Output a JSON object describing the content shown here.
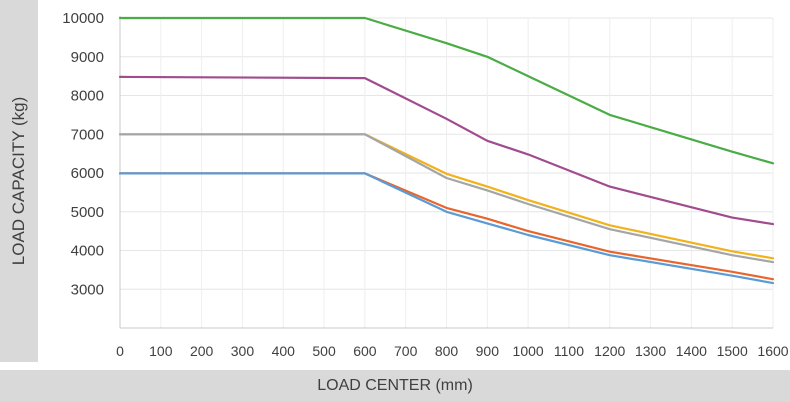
{
  "chart_data": {
    "type": "line",
    "xlabel": "LOAD CENTER (mm)",
    "ylabel": "LOAD CAPACITY (kg)",
    "x": [
      0,
      600,
      800,
      900,
      1000,
      1200,
      1500,
      1600
    ],
    "xticks": [
      0,
      100,
      200,
      300,
      400,
      500,
      600,
      700,
      800,
      900,
      1000,
      1100,
      1200,
      1300,
      1400,
      1500,
      1600
    ],
    "xlim": [
      0,
      1600
    ],
    "yticks": [
      3000,
      4000,
      5000,
      6000,
      7000,
      8000,
      9000,
      10000
    ],
    "ylim": [
      2000,
      10000
    ],
    "grid": true,
    "series": [
      {
        "color": "#4aac45",
        "values": [
          10000,
          10000,
          9350,
          9000,
          8500,
          7500,
          6550,
          6250
        ]
      },
      {
        "color": "#a04c8e",
        "values": [
          8480,
          8450,
          7400,
          6830,
          6480,
          5650,
          4850,
          4680
        ]
      },
      {
        "color": "#f2b21a",
        "values": [
          7000,
          7000,
          5980,
          5650,
          5300,
          4650,
          3980,
          3800
        ]
      },
      {
        "color": "#a5a5a5",
        "values": [
          7000,
          7000,
          5870,
          5550,
          5200,
          4550,
          3880,
          3700
        ]
      },
      {
        "color": "#e8662c",
        "values": [
          5990,
          5990,
          5100,
          4820,
          4500,
          3970,
          3450,
          3260
        ]
      },
      {
        "color": "#5b9bd5",
        "values": [
          5990,
          5990,
          5000,
          4700,
          4400,
          3880,
          3350,
          3160
        ]
      }
    ]
  }
}
